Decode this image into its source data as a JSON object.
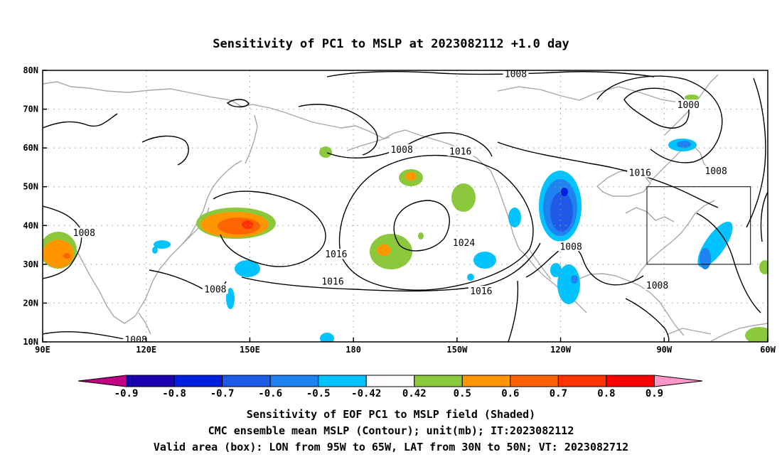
{
  "title": "Sensitivity of PC1 to MSLP at 2023082112 +1.0 day",
  "map": {
    "lon_min": 90,
    "lon_max": 300,
    "lat_min": 10,
    "lat_max": 80,
    "lat_ticks": [
      {
        "value": 80,
        "label": "80N"
      },
      {
        "value": 70,
        "label": "70N"
      },
      {
        "value": 60,
        "label": "60N"
      },
      {
        "value": 50,
        "label": "50N"
      },
      {
        "value": 40,
        "label": "40N"
      },
      {
        "value": 30,
        "label": "30N"
      },
      {
        "value": 20,
        "label": "20N"
      },
      {
        "value": 10,
        "label": "10N"
      }
    ],
    "lon_ticks": [
      {
        "value": 90,
        "label": "90E"
      },
      {
        "value": 120,
        "label": "120E"
      },
      {
        "value": 150,
        "label": "150E"
      },
      {
        "value": 180,
        "label": "180"
      },
      {
        "value": 210,
        "label": "150W"
      },
      {
        "value": 240,
        "label": "120W"
      },
      {
        "value": 270,
        "label": "90W"
      },
      {
        "value": 300,
        "label": "60W"
      }
    ],
    "grid_lines": "dotted",
    "valid_box": {
      "lon_min": 265,
      "lon_max": 295,
      "lat_min": 30,
      "lat_max": 50
    },
    "contour_labels": [
      {
        "text": "1008",
        "lon": 227,
        "lat": 79
      },
      {
        "text": "1000",
        "lon": 277,
        "lat": 71
      },
      {
        "text": "1008",
        "lon": 194,
        "lat": 59.5
      },
      {
        "text": "1016",
        "lon": 211,
        "lat": 59
      },
      {
        "text": "1016",
        "lon": 263,
        "lat": 53.5
      },
      {
        "text": "1008",
        "lon": 285,
        "lat": 54
      },
      {
        "text": "1008",
        "lon": 102,
        "lat": 38
      },
      {
        "text": "1016",
        "lon": 175,
        "lat": 32.5
      },
      {
        "text": "1024",
        "lon": 212,
        "lat": 35.5
      },
      {
        "text": "1008",
        "lon": 243,
        "lat": 34.5
      },
      {
        "text": "1016",
        "lon": 174,
        "lat": 25.5
      },
      {
        "text": "1016",
        "lon": 217,
        "lat": 23
      },
      {
        "text": "1008",
        "lon": 140,
        "lat": 23.5
      },
      {
        "text": "1008",
        "lon": 268,
        "lat": 24.5
      },
      {
        "text": "1008",
        "lon": 117,
        "lat": 10.5
      }
    ]
  },
  "colorbar": {
    "labels": [
      "-0.9",
      "-0.8",
      "-0.7",
      "-0.6",
      "-0.5",
      "-0.42",
      "0.42",
      "0.5",
      "0.6",
      "0.7",
      "0.8",
      "0.9"
    ],
    "colors": [
      "#c00080",
      "#1a00b0",
      "#0020e0",
      "#1e5ae6",
      "#1e82f0",
      "#00c3ff",
      "#ffffff",
      "#8cc83c",
      "#ff9600",
      "#ff6400",
      "#ff3200",
      "#ff0000",
      "#ff96c8"
    ]
  },
  "captions": [
    "Sensitivity of EOF PC1 to MSLP field (Shaded)",
    "CMC ensemble mean MSLP (Contour); unit(mb); IT:2023082112",
    "Valid area (box): LON from 95W to 65W, LAT from 30N to 50N; VT: 2023082712"
  ]
}
